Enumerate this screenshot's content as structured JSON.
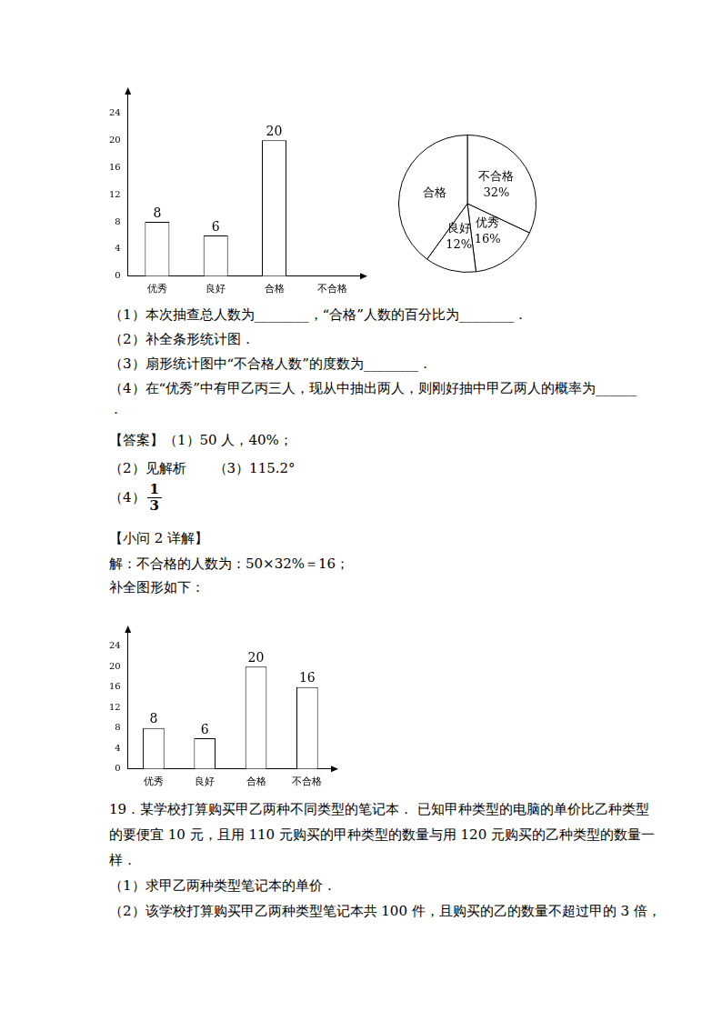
{
  "chart_data": [
    {
      "type": "bar",
      "categories": [
        "优秀",
        "良好",
        "合格",
        "不合格"
      ],
      "values": [
        8,
        6,
        20,
        null
      ],
      "color": "#ffffff",
      "ylim": [
        0,
        27
      ],
      "yticks": [
        0,
        4,
        8,
        12,
        16,
        20,
        24
      ],
      "grid": false,
      "data_labels": true
    },
    {
      "type": "pie",
      "categories": [
        "不合格",
        "优秀",
        "良好",
        "合格"
      ],
      "values": [
        32,
        16,
        12,
        40
      ],
      "value_labels": [
        "32%",
        "16%",
        "12%",
        null
      ],
      "color": "#ffffff",
      "data_labels": true
    },
    {
      "type": "bar",
      "categories": [
        "优秀",
        "良好",
        "合格",
        "不合格"
      ],
      "values": [
        8,
        6,
        20,
        16
      ],
      "color": "#ffffff",
      "ylim": [
        0,
        27
      ],
      "yticks": [
        0,
        4,
        8,
        12,
        16,
        20,
        24
      ],
      "grid": false,
      "data_labels": true
    }
  ],
  "document": {
    "questions": [
      "（1）本次抽查总人数为________，“合格”人数的百分比为________．",
      "（2）补全条形统计图．",
      "（3）扇形统计图中“不合格人数”的度数为________．",
      "（4）在“优秀”中有甲乙丙三人，现从中抽出两人，则刚好抽中甲乙两人的概率为______",
      "．"
    ],
    "answer": {
      "lines": [
        "【答案】（1）50 人，40%；",
        "（2）见解析　　（3）115.2°"
      ],
      "fraction_prefix": "（4）",
      "fraction": {
        "numerator": "1",
        "denominator": "3"
      }
    },
    "detail": {
      "heading": "【小问 2 详解】",
      "lines": [
        "解：不合格的人数为：50×32%＝16；",
        "补全图形如下："
      ]
    },
    "question19": [
      "19．某学校打算购买甲乙两种不同类型的笔记本． 已知甲种类型的电脑的单价比乙种类型",
      "的要便宜 10 元，且用 110 元购买的甲种类型的数量与用 120 元购买的乙种类型的数量一",
      "样．",
      "（1）求甲乙两种类型笔记本的单价．",
      "（2）该学校打算购买甲乙两种类型笔记本共 100 件，且购买的乙的数量不超过甲的 3 倍，"
    ]
  }
}
